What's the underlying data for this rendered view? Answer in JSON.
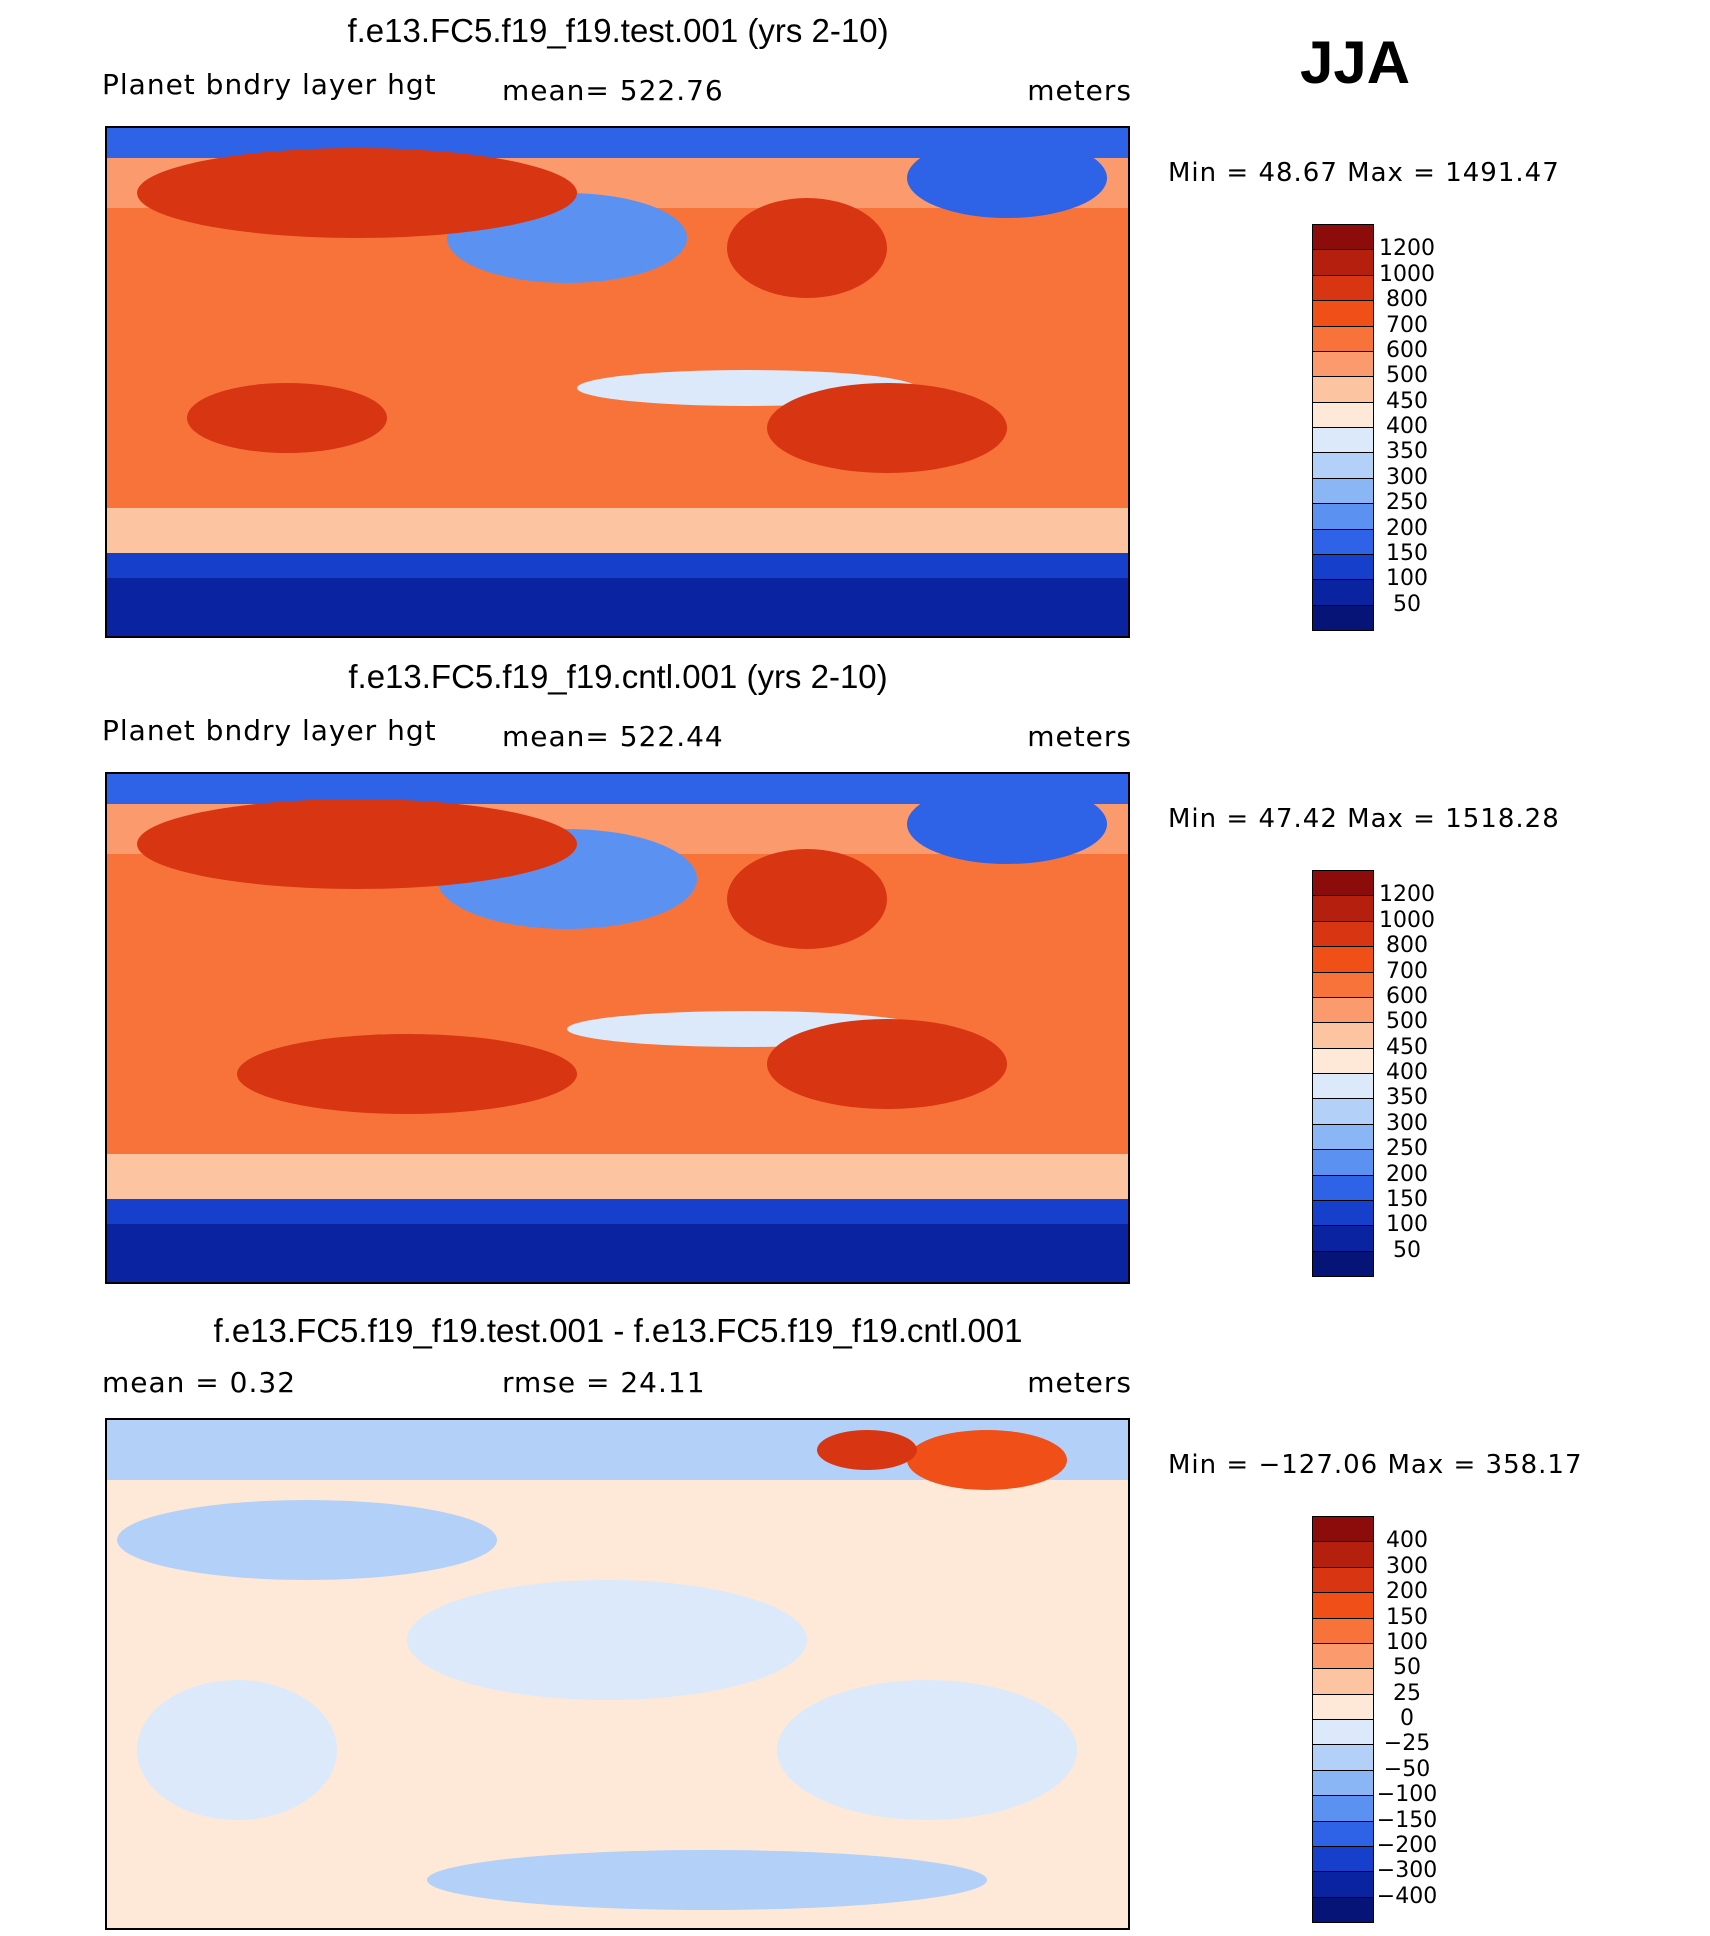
{
  "season": "JJA",
  "chart_data": [
    {
      "type": "heatmap",
      "title": "f.e13.FC5.f19_f19.test.001 (yrs 2-10)",
      "left_label": "Planet bndry layer hgt",
      "stat_text": "mean= 522.76",
      "units": "meters",
      "min_max_text": "Min =   48.67 Max = 1491.47",
      "stats": {
        "mean": 522.76,
        "min": 48.67,
        "max": 1491.47
      },
      "colorbar": {
        "levels": [
          "1200",
          "1000",
          "800",
          "700",
          "600",
          "500",
          "450",
          "400",
          "350",
          "300",
          "250",
          "200",
          "150",
          "100",
          "50"
        ],
        "colors": [
          "#8c0b0b",
          "#b51f0e",
          "#d83512",
          "#f04f18",
          "#f8733a",
          "#fb9a6c",
          "#fdc4a2",
          "#fee9d9",
          "#dbe9fa",
          "#b3d0f8",
          "#8ab6f6",
          "#5b92f2",
          "#2e63e8",
          "#1640cc",
          "#0a23a0",
          "#061478"
        ]
      }
    },
    {
      "type": "heatmap",
      "title": "f.e13.FC5.f19_f19.cntl.001 (yrs 2-10)",
      "left_label": "Planet bndry layer hgt",
      "stat_text": "mean= 522.44",
      "units": "meters",
      "min_max_text": "Min =   47.42 Max = 1518.28",
      "stats": {
        "mean": 522.44,
        "min": 47.42,
        "max": 1518.28
      },
      "colorbar": {
        "levels": [
          "1200",
          "1000",
          "800",
          "700",
          "600",
          "500",
          "450",
          "400",
          "350",
          "300",
          "250",
          "200",
          "150",
          "100",
          "50"
        ],
        "colors": [
          "#8c0b0b",
          "#b51f0e",
          "#d83512",
          "#f04f18",
          "#f8733a",
          "#fb9a6c",
          "#fdc4a2",
          "#fee9d9",
          "#dbe9fa",
          "#b3d0f8",
          "#8ab6f6",
          "#5b92f2",
          "#2e63e8",
          "#1640cc",
          "#0a23a0",
          "#061478"
        ]
      }
    },
    {
      "type": "heatmap",
      "title": "f.e13.FC5.f19_f19.test.001 - f.e13.FC5.f19_f19.cntl.001",
      "left_label": "mean =    0.32",
      "stat_text": "rmse =   24.11",
      "units": "meters",
      "min_max_text": "Min = −127.06 Max = 358.17",
      "stats": {
        "mean": 0.32,
        "rmse": 24.11,
        "min": -127.06,
        "max": 358.17
      },
      "colorbar": {
        "levels": [
          "400",
          "300",
          "200",
          "150",
          "100",
          "50",
          "25",
          "0",
          "−25",
          "−50",
          "−100",
          "−150",
          "−200",
          "−300",
          "−400"
        ],
        "colors": [
          "#8c0b0b",
          "#b51f0e",
          "#d83512",
          "#f04f18",
          "#f8733a",
          "#fb9a6c",
          "#fdc4a2",
          "#fee9d9",
          "#dbe9fa",
          "#b3d0f8",
          "#8ab6f6",
          "#5b92f2",
          "#2e63e8",
          "#1640cc",
          "#0a23a0",
          "#061478"
        ]
      }
    }
  ]
}
